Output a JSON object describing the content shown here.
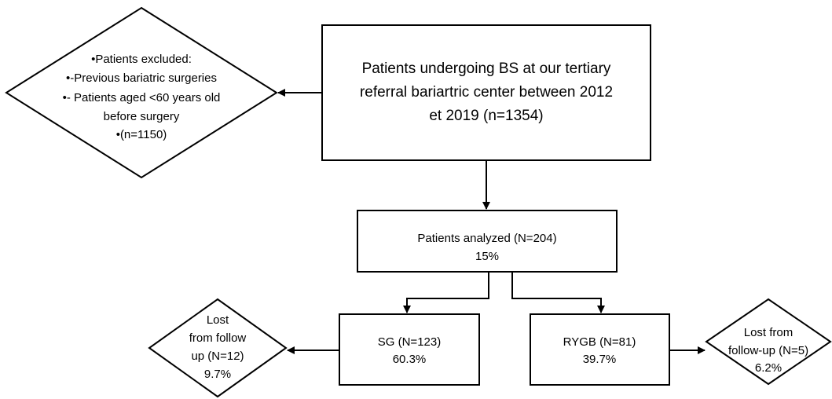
{
  "nodes": [
    {
      "lines": [
        "Patients undergoing BS at our tertiary",
        "referral bariartric center between 2012",
        "et 2019 (n=1354)"
      ]
    },
    {
      "lines": [
        "•Patients excluded:",
        "•-Previous bariatric surgeries",
        "•- Patients aged <60 years old",
        "before surgery",
        "•(n=1150)"
      ]
    },
    {
      "lines": [
        "Patients analyzed (N=204)",
        "15%"
      ]
    },
    {
      "lines": [
        "SG (N=123)",
        "60.3%"
      ]
    },
    {
      "lines": [
        "RYGB (N=81)",
        "39.7%"
      ]
    },
    {
      "lines": [
        "Lost",
        "from follow",
        "up (N=12)",
        "9.7%"
      ]
    },
    {
      "lines": [
        "Lost from",
        "follow-up (N=5)",
        "6.2%"
      ]
    }
  ]
}
